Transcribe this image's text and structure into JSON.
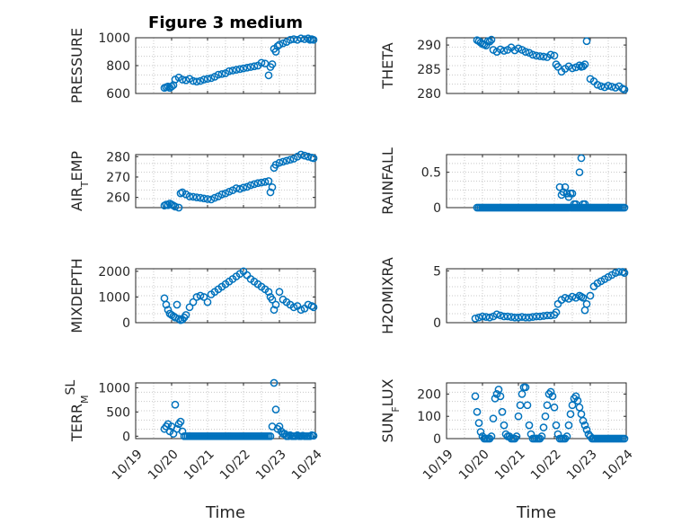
{
  "figure_title": "Figure 3 medium",
  "chart_data": [
    {
      "type": "scatter",
      "id": "pressure",
      "ylabel": "PRESSURE",
      "ylim": [
        600,
        1000
      ],
      "yticks": [
        600,
        800,
        1000
      ],
      "xlim": [
        0,
        5
      ],
      "xticks": [],
      "grid": true,
      "x": [
        0.8,
        0.85,
        0.9,
        0.95,
        1.0,
        1.05,
        1.1,
        1.2,
        1.3,
        1.4,
        1.5,
        1.6,
        1.7,
        1.8,
        1.9,
        2.0,
        2.1,
        2.2,
        2.3,
        2.4,
        2.5,
        2.6,
        2.7,
        2.8,
        2.9,
        3.0,
        3.1,
        3.2,
        3.3,
        3.4,
        3.5,
        3.6,
        3.7,
        3.75,
        3.8,
        3.85,
        3.9,
        3.95,
        4.0,
        4.1,
        4.2,
        4.3,
        4.4,
        4.5,
        4.6,
        4.7,
        4.8,
        4.85,
        4.9,
        4.95
      ],
      "y": [
        640,
        645,
        650,
        640,
        650,
        660,
        700,
        715,
        700,
        695,
        705,
        690,
        685,
        690,
        700,
        705,
        710,
        720,
        735,
        740,
        745,
        760,
        765,
        770,
        775,
        780,
        785,
        790,
        795,
        800,
        820,
        815,
        730,
        790,
        810,
        920,
        900,
        940,
        950,
        960,
        970,
        985,
        990,
        985,
        995,
        990,
        995,
        985,
        990,
        985
      ]
    },
    {
      "type": "scatter",
      "id": "theta",
      "ylabel": "THETA",
      "ylim": [
        280,
        291.5
      ],
      "yticks": [
        280,
        285,
        290
      ],
      "xlim": [
        0,
        5
      ],
      "xticks": [],
      "grid": true,
      "x": [
        0.85,
        0.9,
        0.95,
        1.0,
        1.05,
        1.1,
        1.15,
        1.2,
        1.25,
        1.3,
        1.4,
        1.5,
        1.6,
        1.7,
        1.8,
        1.9,
        2.0,
        2.1,
        2.2,
        2.3,
        2.4,
        2.5,
        2.6,
        2.7,
        2.8,
        2.9,
        3.0,
        3.05,
        3.1,
        3.2,
        3.3,
        3.4,
        3.5,
        3.6,
        3.7,
        3.75,
        3.8,
        3.85,
        3.9,
        4.0,
        4.1,
        4.2,
        4.3,
        4.4,
        4.5,
        4.6,
        4.7,
        4.8,
        4.9,
        4.95
      ],
      "y": [
        291,
        290.8,
        290.5,
        290.2,
        290.1,
        289.9,
        290.8,
        290.7,
        291.1,
        289.0,
        288.6,
        289.1,
        288.8,
        289.0,
        289.5,
        288.9,
        289.3,
        289.0,
        288.6,
        288.4,
        288.0,
        287.8,
        287.7,
        287.6,
        287.5,
        288.0,
        287.8,
        286.0,
        285.5,
        284.5,
        285.1,
        285.6,
        285.2,
        285.4,
        285.8,
        285.5,
        285.6,
        286.0,
        290.8,
        283.0,
        282.5,
        281.8,
        281.5,
        281.3,
        281.6,
        281.4,
        281.2,
        281.5,
        281.0,
        280.8
      ]
    },
    {
      "type": "scatter",
      "id": "air_temp",
      "ylabel": "AIR_TEMP",
      "ylim": [
        255,
        281
      ],
      "yticks": [
        260,
        270,
        280
      ],
      "xlim": [
        0,
        5
      ],
      "xticks": [],
      "grid": true,
      "x": [
        0.8,
        0.85,
        0.9,
        0.95,
        1.0,
        1.05,
        1.1,
        1.2,
        1.25,
        1.3,
        1.4,
        1.5,
        1.6,
        1.7,
        1.8,
        1.9,
        2.0,
        2.1,
        2.2,
        2.3,
        2.4,
        2.5,
        2.6,
        2.7,
        2.8,
        2.9,
        3.0,
        3.1,
        3.2,
        3.3,
        3.4,
        3.5,
        3.6,
        3.7,
        3.75,
        3.8,
        3.85,
        3.9,
        4.0,
        4.1,
        4.2,
        4.3,
        4.4,
        4.5,
        4.6,
        4.7,
        4.8,
        4.9,
        4.95
      ],
      "y": [
        256,
        256.5,
        256.2,
        257,
        256.5,
        256,
        255.5,
        255,
        262,
        262.5,
        261.5,
        260.5,
        260.3,
        260,
        259.8,
        259.5,
        259.2,
        259.0,
        259.8,
        260.5,
        261.5,
        262,
        262.8,
        263.5,
        264.5,
        264.2,
        264.8,
        265.2,
        266,
        266.5,
        267,
        267.3,
        267.6,
        268,
        262.5,
        265,
        274.5,
        276,
        277,
        277.5,
        278,
        278.5,
        279,
        280,
        281,
        280.5,
        280,
        279.5,
        279.2
      ]
    },
    {
      "type": "scatter",
      "id": "rainfall",
      "ylabel": "RAINFALL",
      "ylim": [
        0,
        0.75
      ],
      "yticks": [
        0,
        0.5
      ],
      "xlim": [
        0,
        5
      ],
      "xticks": [],
      "grid": true,
      "x": [
        0.85,
        0.9,
        0.95,
        1.0,
        1.05,
        1.1,
        1.15,
        1.2,
        1.25,
        1.3,
        1.35,
        1.4,
        1.45,
        1.5,
        1.55,
        1.6,
        1.65,
        1.7,
        1.75,
        1.8,
        1.85,
        1.9,
        1.95,
        2.0,
        2.05,
        2.1,
        2.15,
        2.2,
        2.25,
        2.3,
        2.35,
        2.4,
        2.45,
        2.5,
        2.55,
        2.6,
        2.65,
        2.7,
        2.75,
        2.8,
        2.85,
        2.9,
        2.95,
        3.0,
        3.05,
        3.1,
        3.15,
        3.2,
        3.25,
        3.3,
        3.35,
        3.4,
        3.45,
        3.5,
        3.55,
        3.6,
        3.65,
        3.7,
        3.75,
        3.8,
        3.85,
        3.9,
        3.95,
        4.0,
        4.05,
        4.1,
        4.15,
        4.2,
        4.25,
        4.3,
        4.35,
        4.4,
        4.45,
        4.5,
        4.55,
        4.6,
        4.65,
        4.7,
        4.75,
        4.8,
        4.85,
        4.9,
        4.95,
        3.15,
        3.25,
        3.2,
        3.3,
        3.35,
        3.4,
        3.45,
        3.5,
        3.55,
        3.6,
        3.7,
        3.75,
        3.8,
        3.85
      ],
      "y": [
        0,
        0,
        0,
        0,
        0,
        0,
        0,
        0,
        0,
        0,
        0,
        0,
        0,
        0,
        0,
        0,
        0,
        0,
        0,
        0,
        0,
        0,
        0,
        0,
        0,
        0,
        0,
        0,
        0,
        0,
        0,
        0,
        0,
        0,
        0,
        0,
        0,
        0,
        0,
        0,
        0,
        0,
        0,
        0,
        0,
        0,
        0,
        0,
        0,
        0,
        0,
        0,
        0,
        0,
        0,
        0,
        0,
        0,
        0,
        0,
        0,
        0,
        0,
        0,
        0,
        0,
        0,
        0,
        0,
        0,
        0,
        0,
        0,
        0,
        0,
        0,
        0,
        0,
        0,
        0,
        0,
        0,
        0,
        0.29,
        0.22,
        0.18,
        0.29,
        0.2,
        0.15,
        0.2,
        0.2,
        0.05,
        0.05,
        0.5,
        0.7,
        0.05,
        0.05
      ]
    },
    {
      "type": "scatter",
      "id": "mixdepth",
      "ylabel": "MIXDEPTH",
      "ylim": [
        0,
        2100
      ],
      "yticks": [
        0,
        1000,
        2000
      ],
      "xlim": [
        0,
        5
      ],
      "xticks": [],
      "grid": true,
      "x": [
        0.8,
        0.85,
        0.9,
        0.95,
        1.0,
        1.05,
        1.1,
        1.15,
        1.2,
        1.25,
        1.3,
        1.35,
        1.4,
        1.5,
        1.6,
        1.7,
        1.8,
        1.9,
        2.0,
        2.1,
        2.2,
        2.3,
        2.4,
        2.5,
        2.6,
        2.7,
        2.8,
        2.9,
        3.0,
        3.1,
        3.2,
        3.3,
        3.4,
        3.5,
        3.6,
        3.7,
        3.75,
        3.8,
        3.85,
        3.9,
        4.0,
        4.1,
        4.2,
        4.3,
        4.4,
        4.5,
        4.6,
        4.7,
        4.8,
        4.9,
        4.95
      ],
      "y": [
        950,
        700,
        500,
        350,
        300,
        250,
        200,
        700,
        150,
        100,
        120,
        200,
        300,
        600,
        800,
        1000,
        1050,
        1000,
        800,
        1100,
        1200,
        1300,
        1400,
        1500,
        1600,
        1700,
        1800,
        1900,
        2000,
        1850,
        1700,
        1600,
        1500,
        1400,
        1300,
        1200,
        1000,
        900,
        500,
        700,
        1200,
        900,
        800,
        700,
        600,
        650,
        500,
        550,
        700,
        650,
        600
      ]
    },
    {
      "type": "scatter",
      "id": "h2omixra",
      "ylabel": "H2OMIXRA",
      "ylim": [
        0,
        5.2
      ],
      "yticks": [
        0,
        5
      ],
      "xlim": [
        0,
        5
      ],
      "xticks": [],
      "grid": true,
      "x": [
        0.8,
        0.9,
        1.0,
        1.1,
        1.2,
        1.3,
        1.4,
        1.5,
        1.6,
        1.7,
        1.8,
        1.9,
        2.0,
        2.1,
        2.2,
        2.3,
        2.4,
        2.5,
        2.6,
        2.7,
        2.8,
        2.9,
        3.0,
        3.05,
        3.1,
        3.2,
        3.3,
        3.4,
        3.5,
        3.6,
        3.7,
        3.75,
        3.8,
        3.85,
        3.9,
        4.0,
        4.1,
        4.2,
        4.3,
        4.4,
        4.5,
        4.6,
        4.7,
        4.8,
        4.9,
        4.95
      ],
      "y": [
        0.4,
        0.5,
        0.6,
        0.55,
        0.5,
        0.6,
        0.8,
        0.7,
        0.6,
        0.6,
        0.55,
        0.5,
        0.5,
        0.55,
        0.5,
        0.5,
        0.55,
        0.6,
        0.6,
        0.65,
        0.7,
        0.7,
        0.75,
        1.0,
        1.8,
        2.2,
        2.4,
        2.3,
        2.5,
        2.4,
        2.6,
        2.5,
        2.4,
        1.2,
        1.8,
        2.6,
        3.5,
        3.8,
        4.0,
        4.2,
        4.4,
        4.6,
        4.8,
        4.9,
        4.9,
        4.8
      ]
    },
    {
      "type": "scatter",
      "id": "terr_msl",
      "ylabel": "TERR_MSL",
      "ylim": [
        -50,
        1100
      ],
      "yticks": [
        0,
        500,
        1000
      ],
      "xlim": [
        0,
        5
      ],
      "xticks": [
        "10/19",
        "10/20",
        "10/21",
        "10/22",
        "10/23",
        "10/24"
      ],
      "xlabel": "Time",
      "grid": true,
      "x": [
        0.8,
        0.85,
        0.9,
        0.95,
        1.0,
        1.05,
        1.1,
        1.15,
        1.2,
        1.25,
        1.3,
        1.35,
        1.4,
        1.45,
        1.5,
        1.55,
        1.6,
        1.65,
        1.7,
        1.75,
        1.8,
        1.85,
        1.9,
        1.95,
        2.0,
        2.05,
        2.1,
        2.15,
        2.2,
        2.25,
        2.3,
        2.35,
        2.4,
        2.45,
        2.5,
        2.55,
        2.6,
        2.65,
        2.7,
        2.75,
        2.8,
        2.85,
        2.9,
        2.95,
        3.0,
        3.05,
        3.1,
        3.15,
        3.2,
        3.25,
        3.3,
        3.35,
        3.4,
        3.45,
        3.5,
        3.55,
        3.6,
        3.65,
        3.7,
        3.75,
        3.8,
        3.85,
        3.9,
        3.95,
        4.0,
        4.05,
        4.1,
        4.15,
        4.2,
        4.25,
        4.3,
        4.35,
        4.4,
        4.45,
        4.5,
        4.55,
        4.6,
        4.65,
        4.7,
        4.75,
        4.8,
        4.85,
        4.9,
        4.95
      ],
      "y": [
        150,
        200,
        250,
        100,
        200,
        50,
        650,
        150,
        250,
        300,
        100,
        0,
        0,
        0,
        0,
        0,
        0,
        0,
        0,
        0,
        0,
        0,
        0,
        0,
        0,
        0,
        0,
        0,
        0,
        0,
        0,
        0,
        0,
        0,
        0,
        0,
        0,
        0,
        0,
        0,
        0,
        0,
        0,
        0,
        0,
        0,
        0,
        0,
        0,
        0,
        0,
        0,
        0,
        0,
        0,
        0,
        0,
        0,
        0,
        0,
        200,
        1100,
        550,
        150,
        200,
        100,
        50,
        50,
        0,
        0,
        20,
        0,
        0,
        0,
        20,
        0,
        0,
        10,
        0,
        0,
        0,
        0,
        20,
        10
      ]
    },
    {
      "type": "scatter",
      "id": "sun_flux",
      "ylabel": "SUN_FLUX",
      "ylim": [
        0,
        250
      ],
      "yticks": [
        0,
        100,
        200
      ],
      "xlim": [
        0,
        5
      ],
      "xticks": [
        "10/19",
        "10/20",
        "10/21",
        "10/22",
        "10/23",
        "10/24"
      ],
      "xlabel": "Time",
      "grid": true,
      "x": [
        0.8,
        0.85,
        0.9,
        0.95,
        1.0,
        1.05,
        1.1,
        1.15,
        1.2,
        1.25,
        1.3,
        1.35,
        1.4,
        1.45,
        1.5,
        1.55,
        1.6,
        1.65,
        1.7,
        1.75,
        1.8,
        1.85,
        1.9,
        1.95,
        2.0,
        2.05,
        2.1,
        2.15,
        2.2,
        2.25,
        2.3,
        2.35,
        2.4,
        2.45,
        2.5,
        2.55,
        2.6,
        2.65,
        2.7,
        2.75,
        2.8,
        2.85,
        2.9,
        2.95,
        3.0,
        3.05,
        3.1,
        3.15,
        3.2,
        3.25,
        3.3,
        3.35,
        3.4,
        3.45,
        3.5,
        3.55,
        3.6,
        3.65,
        3.7,
        3.75,
        3.8,
        3.85,
        3.9,
        3.95,
        4.0,
        4.05,
        4.1,
        4.15,
        4.2,
        4.25,
        4.3,
        4.35,
        4.4,
        4.45,
        4.5,
        4.55,
        4.6,
        4.65,
        4.7,
        4.75,
        4.8,
        4.85,
        4.9,
        4.95
      ],
      "y": [
        190,
        120,
        70,
        30,
        10,
        0,
        0,
        0,
        0,
        10,
        90,
        180,
        200,
        220,
        190,
        120,
        60,
        20,
        10,
        10,
        0,
        0,
        0,
        10,
        100,
        150,
        200,
        230,
        230,
        150,
        60,
        20,
        0,
        0,
        0,
        0,
        0,
        10,
        50,
        100,
        150,
        200,
        210,
        190,
        140,
        60,
        20,
        0,
        0,
        0,
        0,
        10,
        60,
        110,
        150,
        180,
        190,
        170,
        140,
        110,
        80,
        60,
        40,
        20,
        10,
        0,
        0,
        0,
        0,
        0,
        0,
        0,
        0,
        0,
        0,
        0,
        0,
        0,
        0,
        0,
        0,
        0,
        0,
        0
      ]
    }
  ]
}
